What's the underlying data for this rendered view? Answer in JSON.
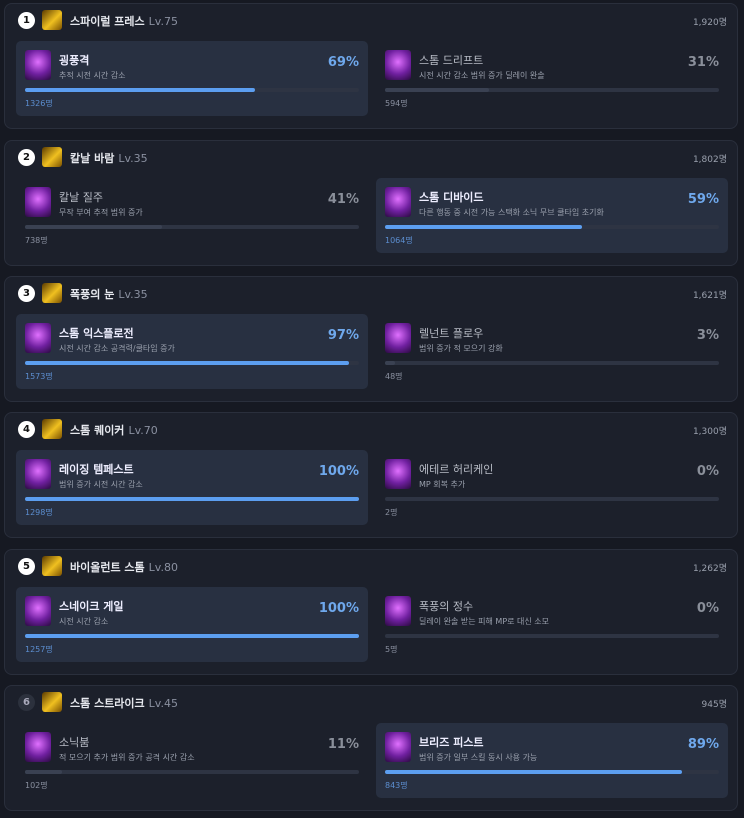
{
  "skills": [
    {
      "rank": "1",
      "name": "스파이럴 프레스",
      "level": "Lv.75",
      "total": "1,920명",
      "options": [
        {
          "name": "굉풍격",
          "desc": "추적 시전 시간 감소",
          "pct": 69,
          "pct_label": "69%",
          "count": "1326명",
          "selected": true
        },
        {
          "name": "스톰 드리프트",
          "desc": "시전 시간 감소 범위 증가 딜레이 완솔",
          "pct": 31,
          "pct_label": "31%",
          "count": "594명",
          "selected": false
        }
      ]
    },
    {
      "rank": "2",
      "name": "칼날 바람",
      "level": "Lv.35",
      "total": "1,802명",
      "options": [
        {
          "name": "칼날 질주",
          "desc": "무작 부여 추적 범위 증가",
          "pct": 41,
          "pct_label": "41%",
          "count": "738명",
          "selected": false
        },
        {
          "name": "스톰 디바이드",
          "desc": "다른 행동 중 시전 가능 스택화 소닉 무브 쿨타임 초기화",
          "pct": 59,
          "pct_label": "59%",
          "count": "1064명",
          "selected": true
        }
      ]
    },
    {
      "rank": "3",
      "name": "폭풍의 눈",
      "level": "Lv.35",
      "total": "1,621명",
      "options": [
        {
          "name": "스톰 익스플로전",
          "desc": "시전 시간 감소 공격력/쿨타임 증가",
          "pct": 97,
          "pct_label": "97%",
          "count": "1573명",
          "selected": true
        },
        {
          "name": "렐넌트 플로우",
          "desc": "범위 증가 적 모으기 강화",
          "pct": 3,
          "pct_label": "3%",
          "count": "48명",
          "selected": false
        }
      ]
    },
    {
      "rank": "4",
      "name": "스톰 퀘이커",
      "level": "Lv.70",
      "total": "1,300명",
      "options": [
        {
          "name": "레이징 템페스트",
          "desc": "범위 증가 시전 시간 감소",
          "pct": 100,
          "pct_label": "100%",
          "count": "1298명",
          "selected": true
        },
        {
          "name": "에테르 허리케인",
          "desc": "MP 회복 추가",
          "pct": 0,
          "pct_label": "0%",
          "count": "2명",
          "selected": false
        }
      ]
    },
    {
      "rank": "5",
      "name": "바이올런트 스톰",
      "level": "Lv.80",
      "total": "1,262명",
      "options": [
        {
          "name": "스네이크 게일",
          "desc": "시전 시간 감소",
          "pct": 100,
          "pct_label": "100%",
          "count": "1257명",
          "selected": true
        },
        {
          "name": "폭풍의 정수",
          "desc": "딜레이 완솔 받는 피해 MP로 대신 소모",
          "pct": 0,
          "pct_label": "0%",
          "count": "5명",
          "selected": false
        }
      ]
    },
    {
      "rank": "6",
      "name": "스톰 스트라이크",
      "level": "Lv.45",
      "total": "945명",
      "options": [
        {
          "name": "소닉붐",
          "desc": "적 모으기 추가 범위 증가 공격 시간 감소",
          "pct": 11,
          "pct_label": "11%",
          "count": "102명",
          "selected": false
        },
        {
          "name": "브리즈 피스트",
          "desc": "범위 증가 일부 스킬 동시 사용 가능",
          "pct": 89,
          "pct_label": "89%",
          "count": "843명",
          "selected": true
        }
      ]
    }
  ]
}
